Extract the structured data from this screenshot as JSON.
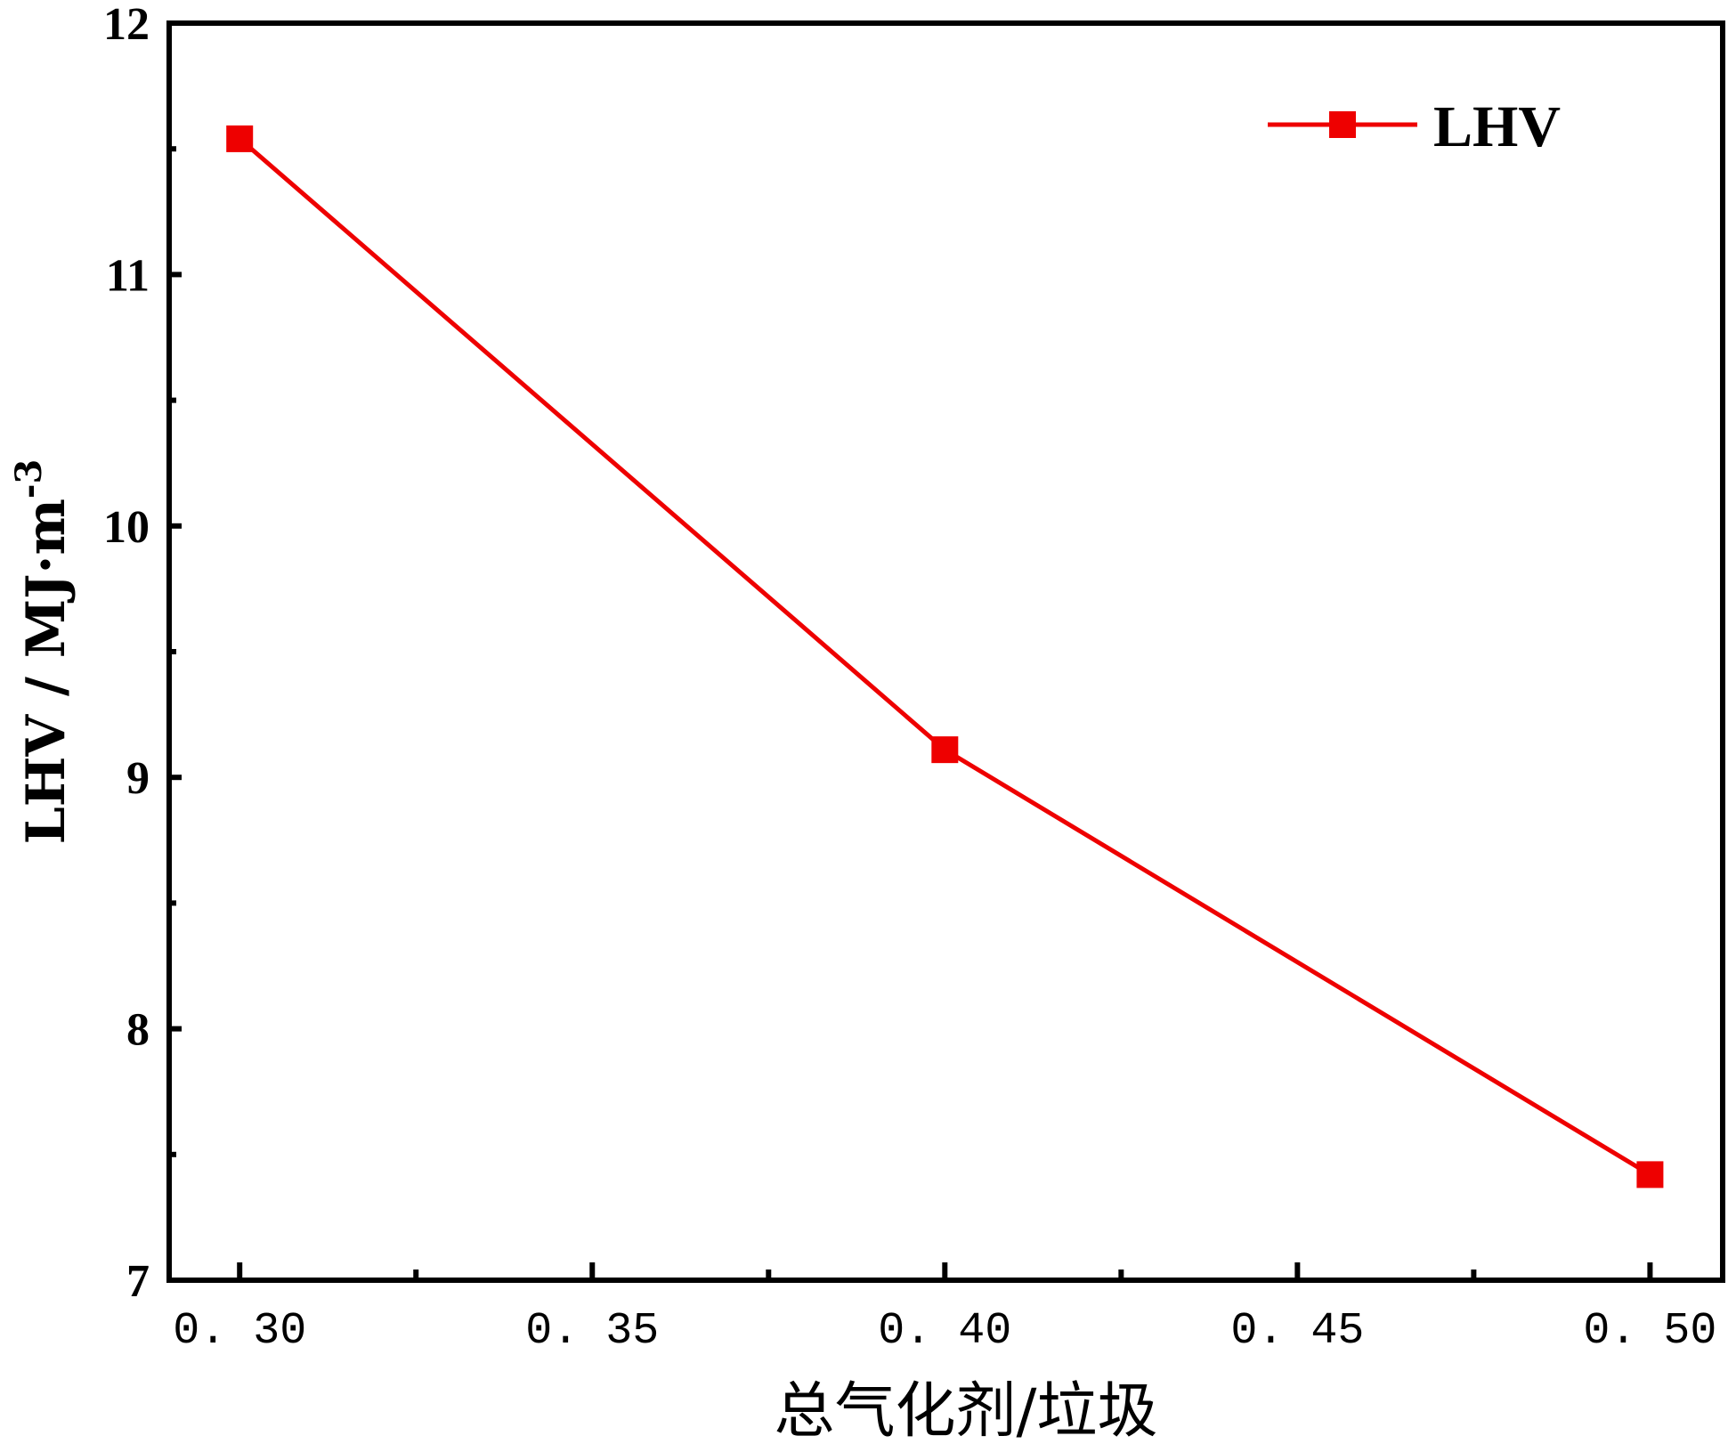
{
  "chart_data": {
    "type": "line",
    "title": "",
    "xlabel": "总气化剂/垃圾",
    "ylabel": "LHV / MJ·m",
    "ylabel_superscript": "-3",
    "x": [
      0.3,
      0.4,
      0.5
    ],
    "xlim": [
      0.29,
      0.5103
    ],
    "ylim": [
      7,
      12
    ],
    "x_ticks": [
      "0.30",
      "0.35",
      "0.40",
      "0.45",
      "0.50"
    ],
    "y_ticks": [
      "7",
      "8",
      "9",
      "10",
      "11",
      "12"
    ],
    "series": [
      {
        "name": "LHV",
        "color": "#ee0000",
        "marker": "square",
        "values": [
          11.54,
          9.11,
          7.42
        ]
      }
    ],
    "legend": {
      "position": "top-right",
      "label": "LHV"
    },
    "grid": false
  }
}
